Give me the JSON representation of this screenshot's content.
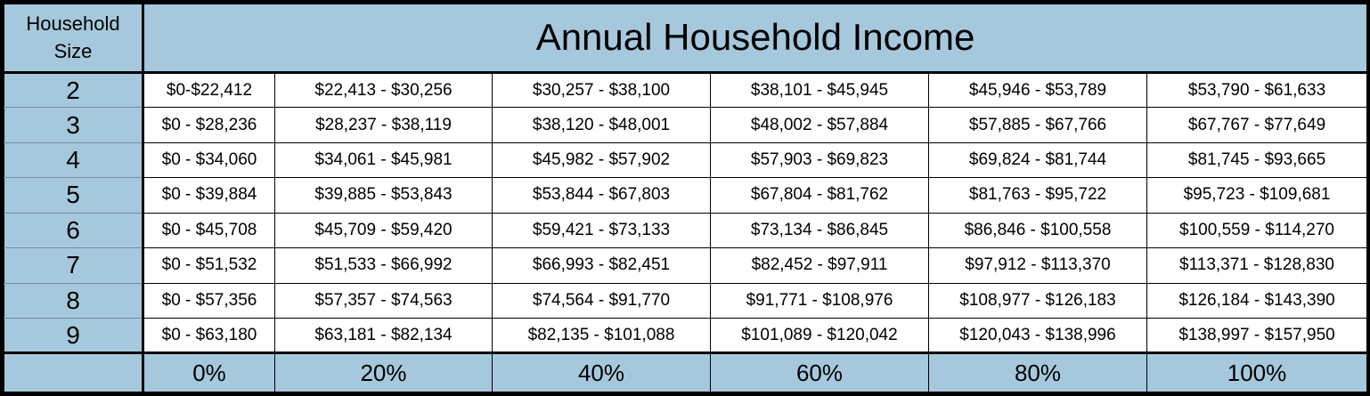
{
  "header": {
    "size_label": "Household Size",
    "title": "Annual Household Income"
  },
  "rows": [
    {
      "size": "2",
      "ranges": [
        "$0-$22,412",
        "$22,413 - $30,256",
        "$30,257 - $38,100",
        "$38,101 - $45,945",
        "$45,946 - $53,789",
        "$53,790 - $61,633"
      ]
    },
    {
      "size": "3",
      "ranges": [
        "$0 - $28,236",
        "$28,237 - $38,119",
        "$38,120 - $48,001",
        "$48,002 - $57,884",
        "$57,885 - $67,766",
        "$67,767 - $77,649"
      ]
    },
    {
      "size": "4",
      "ranges": [
        "$0 - $34,060",
        "$34,061 - $45,981",
        "$45,982 - $57,902",
        "$57,903 - $69,823",
        "$69,824 - $81,744",
        "$81,745 - $93,665"
      ]
    },
    {
      "size": "5",
      "ranges": [
        "$0 - $39,884",
        "$39,885 - $53,843",
        "$53,844 - $67,803",
        "$67,804 - $81,762",
        "$81,763 - $95,722",
        "$95,723 - $109,681"
      ]
    },
    {
      "size": "6",
      "ranges": [
        "$0 - $45,708",
        "$45,709 - $59,420",
        "$59,421 - $73,133",
        "$73,134 - $86,845",
        "$86,846 - $100,558",
        "$100,559 - $114,270"
      ]
    },
    {
      "size": "7",
      "ranges": [
        "$0 - $51,532",
        "$51,533 - $66,992",
        "$66,993 - $82,451",
        "$82,452 - $97,911",
        "$97,912 - $113,370",
        "$113,371 - $128,830"
      ]
    },
    {
      "size": "8",
      "ranges": [
        "$0 - $57,356",
        "$57,357 - $74,563",
        "$74,564 - $91,770",
        "$91,771 - $108,976",
        "$108,977 - $126,183",
        "$126,184 - $143,390"
      ]
    },
    {
      "size": "9",
      "ranges": [
        "$0 - $63,180",
        "$63,181 - $82,134",
        "$82,135 - $101,088",
        "$101,089 - $120,042",
        "$120,043 - $138,996",
        "$138,997 - $157,950"
      ]
    }
  ],
  "percentages": [
    "0%",
    "20%",
    "40%",
    "60%",
    "80%",
    "100%"
  ],
  "colors": {
    "header_fill": "#a6c8dc",
    "cell_fill": "#ffffff",
    "border": "#000000"
  }
}
